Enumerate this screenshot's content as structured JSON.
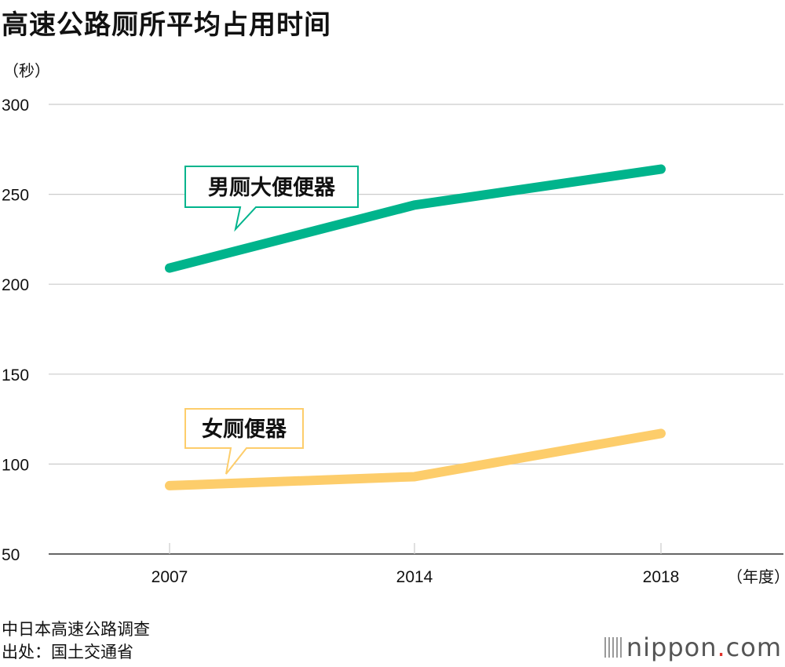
{
  "title": "高速公路厕所平均占用时间",
  "source_line1": "中日本高速公路调查",
  "source_line2": "出处：国土交通省",
  "logo": {
    "name": "nippon",
    "dot": ".",
    "suffix": "com"
  },
  "colors": {
    "male": "#00b48c",
    "female": "#fdcd6b",
    "grid": "#cccccc",
    "axis": "#333333"
  },
  "chart_data": {
    "type": "line",
    "title": "高速公路厕所平均占用时间",
    "ylabel": "（秒）",
    "xlabel": "（年度）",
    "x": [
      "2007",
      "2014",
      "2018"
    ],
    "ylim": [
      50,
      300
    ],
    "yticks": [
      50,
      100,
      150,
      200,
      250,
      300
    ],
    "grid": true,
    "series": [
      {
        "name": "男厕大便便器",
        "values": [
          209,
          244,
          264
        ],
        "color": "#00b48c"
      },
      {
        "name": "女厕便器",
        "values": [
          88,
          93,
          117
        ],
        "color": "#fdcd6b"
      }
    ]
  }
}
